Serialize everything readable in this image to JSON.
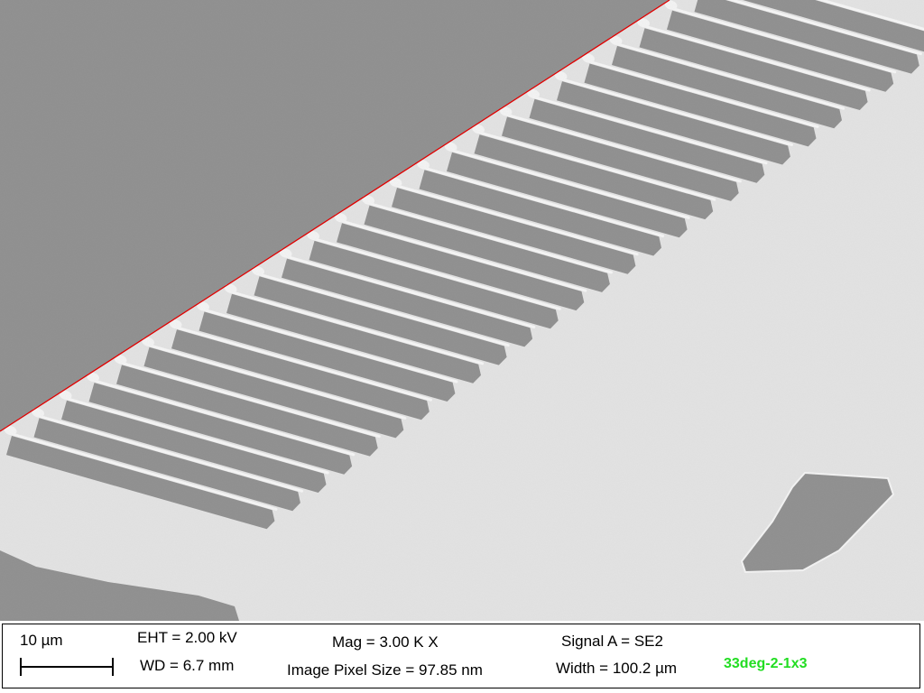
{
  "databar": {
    "scale_bar_label": "10 µm",
    "eht": "EHT =  2.00 kV",
    "wd": "WD =  6.7 mm",
    "mag": "Mag =   3.00 K X",
    "pixel_size": "Image Pixel Size = 97.85 nm",
    "signal": "Signal A = SE2",
    "width": "Width = 100.2 µm",
    "sample_label": "33deg-2-1x3"
  },
  "colors": {
    "substrate": "#8e8e8e",
    "background": "#e3e3e3",
    "edge_line": "#e00000",
    "sample_label": "#22dd22"
  }
}
